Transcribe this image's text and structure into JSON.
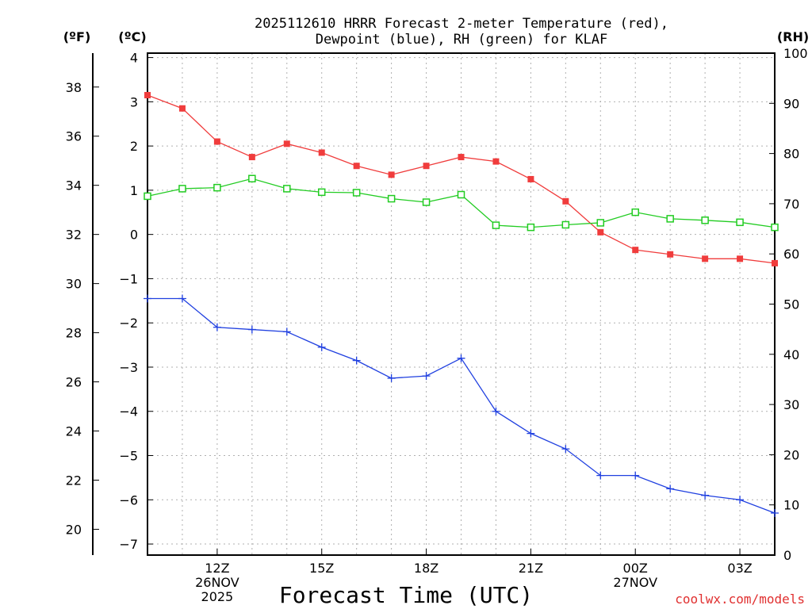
{
  "chart_data": {
    "type": "line",
    "title_lines": [
      "2025112610 HRRR Forecast 2-meter Temperature (red),",
      "Dewpoint (blue), RH (green) for KLAF"
    ],
    "xlabel": "Forecast Time (UTC)",
    "x_hours": [
      10,
      11,
      12,
      13,
      14,
      15,
      16,
      17,
      18,
      19,
      20,
      21,
      22,
      23,
      24,
      25,
      26,
      27,
      28
    ],
    "xlim": [
      10,
      28
    ],
    "x_ticks": [
      {
        "hour": 12,
        "lines": [
          "12Z",
          "26NOV",
          "2025"
        ]
      },
      {
        "hour": 15,
        "lines": [
          "15Z"
        ]
      },
      {
        "hour": 18,
        "lines": [
          "18Z"
        ]
      },
      {
        "hour": 21,
        "lines": [
          "21Z"
        ]
      },
      {
        "hour": 24,
        "lines": [
          "00Z",
          "27NOV"
        ]
      },
      {
        "hour": 27,
        "lines": [
          "03Z"
        ]
      }
    ],
    "axes": {
      "fahrenheit": {
        "label": "(ºF)",
        "ticks": [
          20,
          22,
          24,
          26,
          28,
          30,
          32,
          34,
          36,
          38
        ]
      },
      "celsius": {
        "label": "(ºC)",
        "ylim": [
          -7.25,
          4.1
        ],
        "ticks": [
          -7,
          -6,
          -5,
          -4,
          -3,
          -2,
          -1,
          0,
          1,
          2,
          3,
          4
        ]
      },
      "rh": {
        "label": "(RH)",
        "ylim": [
          0,
          100
        ],
        "ticks": [
          0,
          10,
          20,
          30,
          40,
          50,
          60,
          70,
          80,
          90,
          100
        ]
      }
    },
    "grid": true,
    "series": [
      {
        "name": "Temperature",
        "axis": "celsius",
        "color": "#f03c3c",
        "marker": "filled-square",
        "values": [
          3.15,
          2.85,
          2.1,
          1.75,
          2.05,
          1.85,
          1.55,
          1.35,
          1.55,
          1.75,
          1.65,
          1.25,
          0.75,
          0.05,
          -0.35,
          -0.45,
          -0.55,
          -0.55,
          -0.65
        ]
      },
      {
        "name": "Dewpoint",
        "axis": "celsius",
        "color": "#2040e0",
        "marker": "plus",
        "values": [
          -1.45,
          -1.45,
          -2.1,
          -2.15,
          -2.2,
          -2.55,
          -2.85,
          -3.25,
          -3.2,
          -2.8,
          -4.0,
          -4.5,
          -4.85,
          -5.45,
          -5.45,
          -5.75,
          -5.9,
          -6.0,
          -6.3
        ]
      },
      {
        "name": "Relative Humidity",
        "axis": "rh",
        "color": "#22cc22",
        "marker": "open-square",
        "values": [
          71.5,
          73.0,
          73.2,
          75.0,
          73.0,
          72.3,
          72.2,
          71.0,
          70.3,
          71.8,
          65.7,
          65.3,
          65.8,
          66.2,
          68.3,
          67.0,
          66.7,
          66.3,
          65.3
        ]
      }
    ]
  },
  "credit": "coolwx.com/models"
}
